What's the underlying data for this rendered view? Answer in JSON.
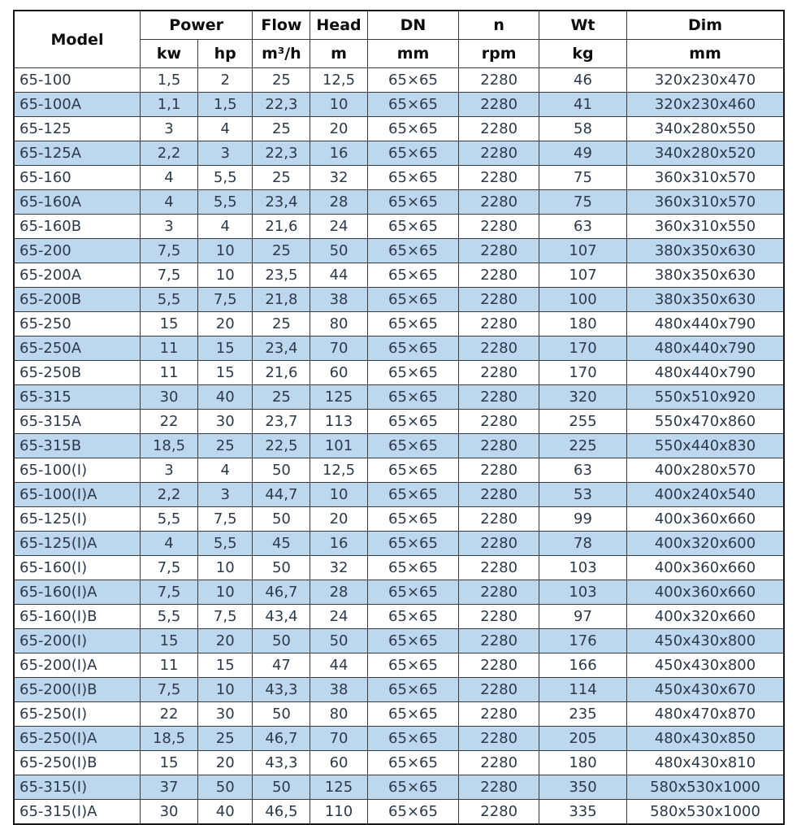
{
  "table": {
    "header": {
      "model": "Model",
      "power": "Power",
      "flow": "Flow",
      "head": "Head",
      "dn": "DN",
      "n": "n",
      "wt": "Wt",
      "dim": "Dim",
      "units": {
        "kw": "kw",
        "hp": "hp",
        "flow": "m³/h",
        "head": "m",
        "dn": "mm",
        "n": "rpm",
        "wt": "kg",
        "dim": "mm"
      }
    },
    "columns": [
      "model",
      "kw",
      "hp",
      "flow",
      "head",
      "dn",
      "n",
      "wt",
      "dim"
    ],
    "rows": [
      [
        "65-100",
        "1,5",
        "2",
        "25",
        "12,5",
        "65×65",
        "2280",
        "46",
        "320x230x470"
      ],
      [
        "65-100A",
        "1,1",
        "1,5",
        "22,3",
        "10",
        "65×65",
        "2280",
        "41",
        "320x230x460"
      ],
      [
        "65-125",
        "3",
        "4",
        "25",
        "20",
        "65×65",
        "2280",
        "58",
        "340x280x550"
      ],
      [
        "65-125A",
        "2,2",
        "3",
        "22,3",
        "16",
        "65×65",
        "2280",
        "49",
        "340x280x520"
      ],
      [
        "65-160",
        "4",
        "5,5",
        "25",
        "32",
        "65×65",
        "2280",
        "75",
        "360x310x570"
      ],
      [
        "65-160A",
        "4",
        "5,5",
        "23,4",
        "28",
        "65×65",
        "2280",
        "75",
        "360x310x570"
      ],
      [
        "65-160B",
        "3",
        "4",
        "21,6",
        "24",
        "65×65",
        "2280",
        "63",
        "360x310x550"
      ],
      [
        "65-200",
        "7,5",
        "10",
        "25",
        "50",
        "65×65",
        "2280",
        "107",
        "380x350x630"
      ],
      [
        "65-200A",
        "7,5",
        "10",
        "23,5",
        "44",
        "65×65",
        "2280",
        "107",
        "380x350x630"
      ],
      [
        "65-200B",
        "5,5",
        "7,5",
        "21,8",
        "38",
        "65×65",
        "2280",
        "100",
        "380x350x630"
      ],
      [
        "65-250",
        "15",
        "20",
        "25",
        "80",
        "65×65",
        "2280",
        "180",
        "480x440x790"
      ],
      [
        "65-250A",
        "11",
        "15",
        "23,4",
        "70",
        "65×65",
        "2280",
        "170",
        "480x440x790"
      ],
      [
        "65-250B",
        "11",
        "15",
        "21,6",
        "60",
        "65×65",
        "2280",
        "170",
        "480x440x790"
      ],
      [
        "65-315",
        "30",
        "40",
        "25",
        "125",
        "65×65",
        "2280",
        "320",
        "550x510x920"
      ],
      [
        "65-315A",
        "22",
        "30",
        "23,7",
        "113",
        "65×65",
        "2280",
        "255",
        "550x470x860"
      ],
      [
        "65-315B",
        "18,5",
        "25",
        "22,5",
        "101",
        "65×65",
        "2280",
        "225",
        "550x440x830"
      ],
      [
        "65-100(I)",
        "3",
        "4",
        "50",
        "12,5",
        "65×65",
        "2280",
        "63",
        "400x280x570"
      ],
      [
        "65-100(I)A",
        "2,2",
        "3",
        "44,7",
        "10",
        "65×65",
        "2280",
        "53",
        "400x240x540"
      ],
      [
        "65-125(I)",
        "5,5",
        "7,5",
        "50",
        "20",
        "65×65",
        "2280",
        "99",
        "400x360x660"
      ],
      [
        "65-125(I)A",
        "4",
        "5,5",
        "45",
        "16",
        "65×65",
        "2280",
        "78",
        "400x320x600"
      ],
      [
        "65-160(I)",
        "7,5",
        "10",
        "50",
        "32",
        "65×65",
        "2280",
        "103",
        "400x360x660"
      ],
      [
        "65-160(I)A",
        "7,5",
        "10",
        "46,7",
        "28",
        "65×65",
        "2280",
        "103",
        "400x360x660"
      ],
      [
        "65-160(I)B",
        "5,5",
        "7,5",
        "43,4",
        "24",
        "65×65",
        "2280",
        "97",
        "400x320x660"
      ],
      [
        "65-200(I)",
        "15",
        "20",
        "50",
        "50",
        "65×65",
        "2280",
        "176",
        "450x430x800"
      ],
      [
        "65-200(I)A",
        "11",
        "15",
        "47",
        "44",
        "65×65",
        "2280",
        "166",
        "450x430x800"
      ],
      [
        "65-200(I)B",
        "7,5",
        "10",
        "43,3",
        "38",
        "65×65",
        "2280",
        "114",
        "450x430x670"
      ],
      [
        "65-250(I)",
        "22",
        "30",
        "50",
        "80",
        "65×65",
        "2280",
        "235",
        "480x470x870"
      ],
      [
        "65-250(I)A",
        "18,5",
        "25",
        "46,7",
        "70",
        "65×65",
        "2280",
        "205",
        "480x430x850"
      ],
      [
        "65-250(I)B",
        "15",
        "20",
        "43,3",
        "60",
        "65×65",
        "2280",
        "180",
        "480x430x810"
      ],
      [
        "65-315(I)",
        "37",
        "50",
        "50",
        "125",
        "65×65",
        "2280",
        "350",
        "580x530x1000"
      ],
      [
        "65-315(I)A",
        "30",
        "40",
        "46,5",
        "110",
        "65×65",
        "2280",
        "335",
        "580x530x1000"
      ]
    ]
  },
  "colors": {
    "stripe_blue": "#bdd7ee",
    "border": "#3a3a3a",
    "outer_border": "#161616",
    "data_text": "#2c3a49",
    "header_text": "#0d0d0d",
    "background": "#ffffff"
  }
}
